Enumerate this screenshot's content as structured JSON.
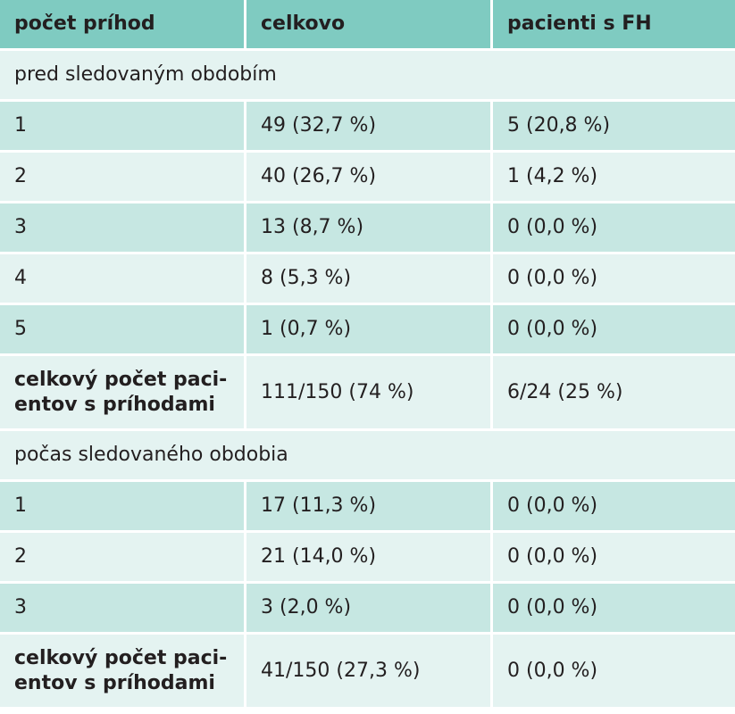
{
  "header": {
    "col1": "počet príhod",
    "col2": "celkovo",
    "col3": "pacienti s FH"
  },
  "sections": [
    {
      "title": "pred sledovaným obdobím",
      "rows": [
        {
          "count": "1",
          "total": "49 (32,7 %)",
          "fh": "5 (20,8 %)"
        },
        {
          "count": "2",
          "total": "40 (26,7 %)",
          "fh": "1 (4,2 %)"
        },
        {
          "count": "3",
          "total": "13 (8,7 %)",
          "fh": "0 (0,0 %)"
        },
        {
          "count": "4",
          "total": "8 (5,3 %)",
          "fh": "0 (0,0 %)"
        },
        {
          "count": "5",
          "total": "1 (0,7 %)",
          "fh": "0 (0,0 %)"
        }
      ],
      "summary": {
        "label_line1": "celkový počet paci-",
        "label_line2": "entov s príhodami",
        "total": "111/150 (74 %)",
        "fh": "6/24 (25 %)"
      }
    },
    {
      "title": "počas sledovaného obdobia",
      "rows": [
        {
          "count": "1",
          "total": "17 (11,3 %)",
          "fh": "0 (0,0 %)"
        },
        {
          "count": "2",
          "total": "21 (14,0 %)",
          "fh": "0 (0,0 %)"
        },
        {
          "count": "3",
          "total": "3 (2,0 %)",
          "fh": "0 (0,0 %)"
        }
      ],
      "summary": {
        "label_line1": "celkový počet paci-",
        "label_line2": "entov s príhodami",
        "total": "41/150 (27,3 %)",
        "fh": "0 (0,0 %)"
      }
    }
  ]
}
